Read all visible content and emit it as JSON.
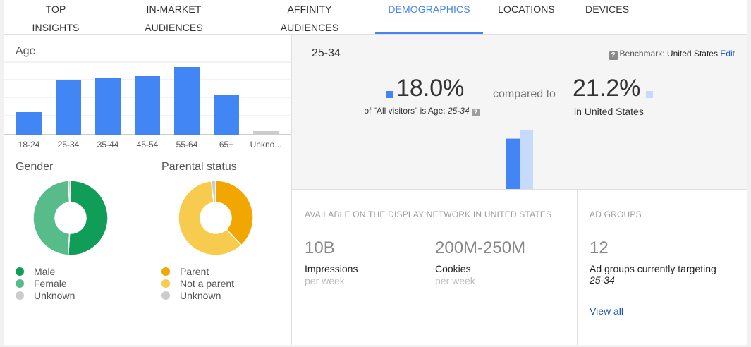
{
  "tabs": [
    {
      "label": "TOP INSIGHTS",
      "active": false
    },
    {
      "label": "IN-MARKET AUDIENCES",
      "active": false
    },
    {
      "label": "AFFINITY AUDIENCES",
      "active": false
    },
    {
      "label": "DEMOGRAPHICS",
      "active": true
    },
    {
      "label": "LOCATIONS",
      "active": false
    },
    {
      "label": "DEVICES",
      "active": false
    }
  ],
  "age": {
    "title": "Age",
    "categories": [
      "18-24",
      "25-34",
      "35-44",
      "45-54",
      "55-64",
      "65+",
      "Unkno..."
    ],
    "values": [
      32,
      77,
      81,
      83,
      96,
      56,
      5
    ],
    "bar_color": "#4285f4",
    "unknown_color": "#cccccc"
  },
  "gender": {
    "title": "Gender",
    "slices": [
      {
        "label": "Male",
        "value": 51,
        "color": "#0f9d58"
      },
      {
        "label": "Female",
        "value": 48,
        "color": "#57bb8a"
      },
      {
        "label": "Unknown",
        "value": 1,
        "color": "#cccccc"
      }
    ]
  },
  "parental": {
    "title": "Parental status",
    "slices": [
      {
        "label": "Parent",
        "value": 38,
        "color": "#f2a600"
      },
      {
        "label": "Not a parent",
        "value": 60,
        "color": "#f7cb4d"
      },
      {
        "label": "Unknown",
        "value": 2,
        "color": "#cccccc"
      }
    ]
  },
  "comparison": {
    "selected": "25-34",
    "benchmark_label": "Benchmark:",
    "benchmark_value": "United States",
    "edit_label": "Edit",
    "help_icon": "?",
    "left_pct": "18.0%",
    "left_caption_prefix": "of \"All visitors\" is Age:",
    "left_caption_value": "25-34",
    "compared_to": "compared to",
    "right_pct": "21.2%",
    "right_caption": "in United States",
    "left_value": 18.0,
    "right_value": 21.2,
    "left_color": "#4285f4",
    "right_color": "#c6dafc"
  },
  "network": {
    "heading": "AVAILABLE ON THE DISPLAY NETWORK IN UNITED STATES",
    "impressions_value": "10B",
    "impressions_label": "Impressions",
    "impressions_sub": "per week",
    "cookies_value": "200M-250M",
    "cookies_label": "Cookies",
    "cookies_sub": "per week"
  },
  "ad_groups": {
    "heading": "AD GROUPS",
    "count": "12",
    "label": "Ad groups currently targeting",
    "target": "25-34",
    "view_all": "View all"
  }
}
